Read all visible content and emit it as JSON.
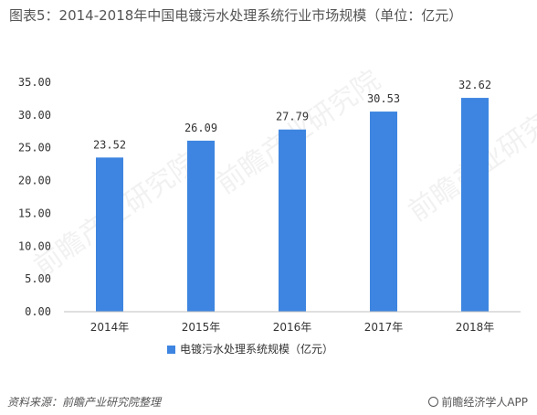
{
  "header": {
    "title": "图表5：2014-2018年中国电镀污水处理系统行业市场规模（单位：亿元）"
  },
  "chart_data": {
    "type": "bar",
    "categories": [
      "2014年",
      "2015年",
      "2016年",
      "2017年",
      "2018年"
    ],
    "series": [
      {
        "name": "电镀污水处理系统规模（亿元）",
        "values": [
          23.52,
          26.09,
          27.79,
          30.53,
          32.62
        ],
        "color": "#3d85e0"
      }
    ],
    "y_ticks": [
      "0.00",
      "5.00",
      "10.00",
      "15.00",
      "20.00",
      "25.00",
      "30.00",
      "35.00"
    ],
    "ylim": [
      0,
      35
    ],
    "data_labels": [
      "23.52",
      "26.09",
      "27.79",
      "30.53",
      "32.62"
    ],
    "grid": false,
    "legend_position": "bottom"
  },
  "footer": {
    "source": "资料来源：前瞻产业研究院整理",
    "brand": "前瞻经济学人APP",
    "brand_icon": "target-icon"
  },
  "watermark": {
    "text": "前瞻产业研究院"
  }
}
